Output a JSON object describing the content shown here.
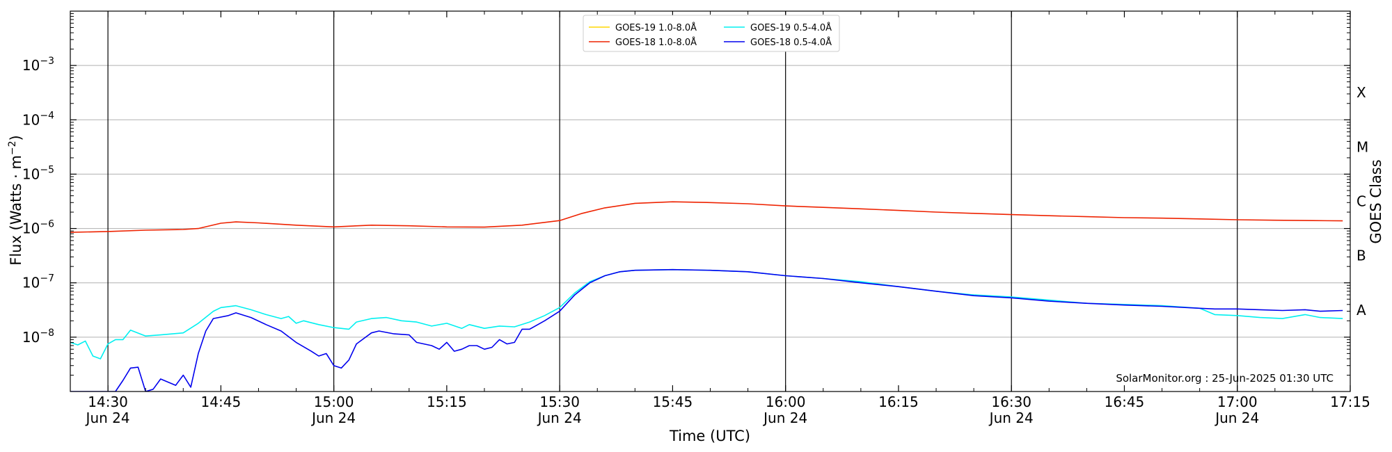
{
  "chart_data": {
    "type": "line",
    "title": "",
    "xlabel": "Time (UTC)",
    "ylabel": "Flux (Watts · m⁻²)",
    "ylabel_right": "GOES Class",
    "y_scale": "log",
    "xlim": [
      "14:25",
      "17:15"
    ],
    "ylim": [
      1e-09,
      0.01
    ],
    "grid": "horizontal",
    "legend_position": "top-center",
    "credit": "SolarMonitor.org : 25-Jun-2025 01:30 UTC",
    "x_ticks": [
      {
        "time": "14:30",
        "label": "14:30",
        "sublabel": "Jun 24"
      },
      {
        "time": "14:45",
        "label": "14:45",
        "sublabel": ""
      },
      {
        "time": "15:00",
        "label": "15:00",
        "sublabel": "Jun 24"
      },
      {
        "time": "15:15",
        "label": "15:15",
        "sublabel": ""
      },
      {
        "time": "15:30",
        "label": "15:30",
        "sublabel": "Jun 24"
      },
      {
        "time": "15:45",
        "label": "15:45",
        "sublabel": ""
      },
      {
        "time": "16:00",
        "label": "16:00",
        "sublabel": "Jun 24"
      },
      {
        "time": "16:15",
        "label": "16:15",
        "sublabel": ""
      },
      {
        "time": "16:30",
        "label": "16:30",
        "sublabel": "Jun 24"
      },
      {
        "time": "16:45",
        "label": "16:45",
        "sublabel": ""
      },
      {
        "time": "17:00",
        "label": "17:00",
        "sublabel": "Jun 24"
      },
      {
        "time": "17:15",
        "label": "17:15",
        "sublabel": ""
      }
    ],
    "y_ticks": [
      {
        "value": 1e-08,
        "base": "10",
        "exp": "−8"
      },
      {
        "value": 1e-07,
        "base": "10",
        "exp": "−7"
      },
      {
        "value": 1e-06,
        "base": "10",
        "exp": "−6"
      },
      {
        "value": 1e-05,
        "base": "10",
        "exp": "−5"
      },
      {
        "value": 0.0001,
        "base": "10",
        "exp": "−4"
      },
      {
        "value": 0.001,
        "base": "10",
        "exp": "−3"
      }
    ],
    "goes_classes": [
      {
        "label": "A",
        "value": 3.16e-08
      },
      {
        "label": "B",
        "value": 3.16e-07
      },
      {
        "label": "C",
        "value": 3.16e-06
      },
      {
        "label": "M",
        "value": 3.16e-05
      },
      {
        "label": "X",
        "value": 0.000316
      }
    ],
    "series": [
      {
        "name": "GOES-19 1.0-8.0Å",
        "color": "#FFD700",
        "points": []
      },
      {
        "name": "GOES-18 1.0-8.0Å",
        "color": "#EE2200",
        "points": [
          [
            "14:25",
            8.5e-07
          ],
          [
            "14:30",
            8.8e-07
          ],
          [
            "14:35",
            9.3e-07
          ],
          [
            "14:40",
            9.6e-07
          ],
          [
            "14:42",
            1e-06
          ],
          [
            "14:45",
            1.25e-06
          ],
          [
            "14:47",
            1.32e-06
          ],
          [
            "14:50",
            1.27e-06
          ],
          [
            "14:55",
            1.15e-06
          ],
          [
            "15:00",
            1.07e-06
          ],
          [
            "15:05",
            1.15e-06
          ],
          [
            "15:10",
            1.12e-06
          ],
          [
            "15:15",
            1.07e-06
          ],
          [
            "15:20",
            1.06e-06
          ],
          [
            "15:25",
            1.15e-06
          ],
          [
            "15:30",
            1.4e-06
          ],
          [
            "15:33",
            1.9e-06
          ],
          [
            "15:36",
            2.4e-06
          ],
          [
            "15:40",
            2.9e-06
          ],
          [
            "15:45",
            3.1e-06
          ],
          [
            "15:50",
            3e-06
          ],
          [
            "15:55",
            2.85e-06
          ],
          [
            "16:00",
            2.6e-06
          ],
          [
            "16:05",
            2.45e-06
          ],
          [
            "16:10",
            2.3e-06
          ],
          [
            "16:15",
            2.15e-06
          ],
          [
            "16:20",
            2e-06
          ],
          [
            "16:25",
            1.9e-06
          ],
          [
            "16:30",
            1.8e-06
          ],
          [
            "16:35",
            1.72e-06
          ],
          [
            "16:40",
            1.65e-06
          ],
          [
            "16:45",
            1.58e-06
          ],
          [
            "16:50",
            1.55e-06
          ],
          [
            "16:55",
            1.5e-06
          ],
          [
            "17:00",
            1.45e-06
          ],
          [
            "17:05",
            1.42e-06
          ],
          [
            "17:10",
            1.4e-06
          ],
          [
            "17:14",
            1.38e-06
          ]
        ]
      },
      {
        "name": "GOES-19 0.5-4.0Å",
        "color": "#00F0F0",
        "points": [
          [
            "14:25",
            8e-09
          ],
          [
            "14:26",
            7.2e-09
          ],
          [
            "14:27",
            8.5e-09
          ],
          [
            "14:28",
            4.5e-09
          ],
          [
            "14:29",
            4e-09
          ],
          [
            "14:30",
            7.5e-09
          ],
          [
            "14:31",
            9e-09
          ],
          [
            "14:32",
            9e-09
          ],
          [
            "14:33",
            1.35e-08
          ],
          [
            "14:35",
            1.05e-08
          ],
          [
            "14:37",
            1.1e-08
          ],
          [
            "14:40",
            1.2e-08
          ],
          [
            "14:42",
            1.8e-08
          ],
          [
            "14:44",
            3e-08
          ],
          [
            "14:45",
            3.5e-08
          ],
          [
            "14:47",
            3.8e-08
          ],
          [
            "14:49",
            3.2e-08
          ],
          [
            "14:51",
            2.6e-08
          ],
          [
            "14:53",
            2.2e-08
          ],
          [
            "14:54",
            2.4e-08
          ],
          [
            "14:55",
            1.8e-08
          ],
          [
            "14:56",
            2e-08
          ],
          [
            "14:58",
            1.7e-08
          ],
          [
            "15:00",
            1.5e-08
          ],
          [
            "15:02",
            1.4e-08
          ],
          [
            "15:03",
            1.9e-08
          ],
          [
            "15:05",
            2.2e-08
          ],
          [
            "15:07",
            2.3e-08
          ],
          [
            "15:09",
            2e-08
          ],
          [
            "15:11",
            1.9e-08
          ],
          [
            "15:13",
            1.6e-08
          ],
          [
            "15:15",
            1.8e-08
          ],
          [
            "15:17",
            1.45e-08
          ],
          [
            "15:18",
            1.7e-08
          ],
          [
            "15:20",
            1.45e-08
          ],
          [
            "15:22",
            1.6e-08
          ],
          [
            "15:24",
            1.55e-08
          ],
          [
            "15:26",
            1.9e-08
          ],
          [
            "15:28",
            2.5e-08
          ],
          [
            "15:30",
            3.5e-08
          ],
          [
            "15:32",
            6.5e-08
          ],
          [
            "15:34",
            1.05e-07
          ],
          [
            "15:36",
            1.35e-07
          ],
          [
            "15:38",
            1.6e-07
          ],
          [
            "15:40",
            1.7e-07
          ],
          [
            "15:45",
            1.75e-07
          ],
          [
            "15:50",
            1.7e-07
          ],
          [
            "15:55",
            1.6e-07
          ],
          [
            "16:00",
            1.35e-07
          ],
          [
            "16:05",
            1.2e-07
          ],
          [
            "16:10",
            1.05e-07
          ],
          [
            "16:15",
            8.5e-08
          ],
          [
            "16:20",
            7e-08
          ],
          [
            "16:25",
            6e-08
          ],
          [
            "16:30",
            5.5e-08
          ],
          [
            "16:35",
            4.8e-08
          ],
          [
            "16:40",
            4.2e-08
          ],
          [
            "16:45",
            4e-08
          ],
          [
            "16:50",
            3.8e-08
          ],
          [
            "16:55",
            3.4e-08
          ],
          [
            "16:57",
            2.6e-08
          ],
          [
            "17:00",
            2.5e-08
          ],
          [
            "17:03",
            2.3e-08
          ],
          [
            "17:06",
            2.2e-08
          ],
          [
            "17:09",
            2.6e-08
          ],
          [
            "17:11",
            2.3e-08
          ],
          [
            "17:14",
            2.2e-08
          ]
        ]
      },
      {
        "name": "GOES-18 0.5-4.0Å",
        "color": "#0000EE",
        "points": [
          [
            "14:25",
            1e-09
          ],
          [
            "14:29",
            1e-09
          ],
          [
            "14:31",
            1e-09
          ],
          [
            "14:32",
            1.6e-09
          ],
          [
            "14:33",
            2.7e-09
          ],
          [
            "14:34",
            2.8e-09
          ],
          [
            "14:35",
            1e-09
          ],
          [
            "14:36",
            1.1e-09
          ],
          [
            "14:37",
            1.7e-09
          ],
          [
            "14:39",
            1.3e-09
          ],
          [
            "14:40",
            2e-09
          ],
          [
            "14:41",
            1.2e-09
          ],
          [
            "14:42",
            5e-09
          ],
          [
            "14:43",
            1.3e-08
          ],
          [
            "14:44",
            2.2e-08
          ],
          [
            "14:46",
            2.5e-08
          ],
          [
            "14:47",
            2.8e-08
          ],
          [
            "14:49",
            2.3e-08
          ],
          [
            "14:51",
            1.7e-08
          ],
          [
            "14:53",
            1.3e-08
          ],
          [
            "14:55",
            8e-09
          ],
          [
            "14:57",
            5.5e-09
          ],
          [
            "14:58",
            4.5e-09
          ],
          [
            "14:59",
            5e-09
          ],
          [
            "15:00",
            3e-09
          ],
          [
            "15:01",
            2.7e-09
          ],
          [
            "15:02",
            3.8e-09
          ],
          [
            "15:03",
            7.5e-09
          ],
          [
            "15:05",
            1.2e-08
          ],
          [
            "15:06",
            1.3e-08
          ],
          [
            "15:08",
            1.15e-08
          ],
          [
            "15:10",
            1.1e-08
          ],
          [
            "15:11",
            8e-09
          ],
          [
            "15:13",
            7e-09
          ],
          [
            "15:14",
            6e-09
          ],
          [
            "15:15",
            8e-09
          ],
          [
            "15:16",
            5.5e-09
          ],
          [
            "15:17",
            6e-09
          ],
          [
            "15:18",
            7e-09
          ],
          [
            "15:19",
            7e-09
          ],
          [
            "15:20",
            6e-09
          ],
          [
            "15:21",
            6.5e-09
          ],
          [
            "15:22",
            9e-09
          ],
          [
            "15:23",
            7.5e-09
          ],
          [
            "15:24",
            8e-09
          ],
          [
            "15:25",
            1.4e-08
          ],
          [
            "15:26",
            1.4e-08
          ],
          [
            "15:28",
            2e-08
          ],
          [
            "15:30",
            3e-08
          ],
          [
            "15:32",
            6e-08
          ],
          [
            "15:34",
            1e-07
          ],
          [
            "15:36",
            1.35e-07
          ],
          [
            "15:38",
            1.6e-07
          ],
          [
            "15:40",
            1.7e-07
          ],
          [
            "15:45",
            1.75e-07
          ],
          [
            "15:50",
            1.7e-07
          ],
          [
            "15:55",
            1.6e-07
          ],
          [
            "16:00",
            1.35e-07
          ],
          [
            "16:05",
            1.2e-07
          ],
          [
            "16:10",
            1e-07
          ],
          [
            "16:15",
            8.5e-08
          ],
          [
            "16:20",
            7e-08
          ],
          [
            "16:25",
            5.8e-08
          ],
          [
            "16:30",
            5.3e-08
          ],
          [
            "16:35",
            4.6e-08
          ],
          [
            "16:40",
            4.2e-08
          ],
          [
            "16:45",
            3.9e-08
          ],
          [
            "16:50",
            3.7e-08
          ],
          [
            "16:55",
            3.4e-08
          ],
          [
            "16:57",
            3.3e-08
          ],
          [
            "17:00",
            3.3e-08
          ],
          [
            "17:03",
            3.2e-08
          ],
          [
            "17:06",
            3.1e-08
          ],
          [
            "17:09",
            3.2e-08
          ],
          [
            "17:11",
            3e-08
          ],
          [
            "17:14",
            3.1e-08
          ]
        ]
      }
    ]
  }
}
